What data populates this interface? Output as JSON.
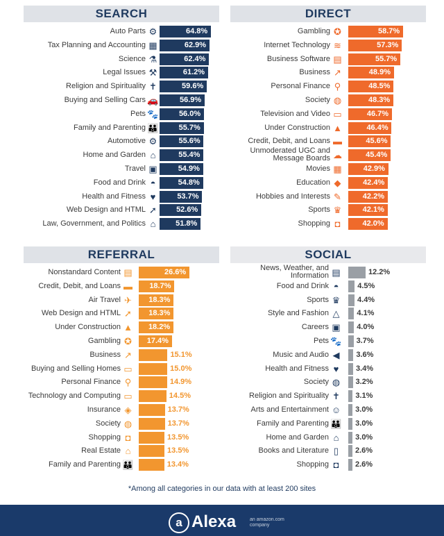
{
  "colors": {
    "search": "#1f3a5f",
    "direct": "#ef6a2b",
    "referral": "#f2962f",
    "social": "#9a9fa5",
    "title_text": "#1f3a5f",
    "label_text": "#3a3a3a",
    "footer": "#1a3a6a"
  },
  "chart_data": [
    {
      "type": "bar",
      "title": "SEARCH",
      "orientation": "horizontal",
      "max": 64.8,
      "categories": [
        "Auto Parts",
        "Tax Planning and Accounting",
        "Science",
        "Legal Issues",
        "Religion and Spirituality",
        "Buying and Selling Cars",
        "Pets",
        "Family and Parenting",
        "Automotive",
        "Home and Garden",
        "Travel",
        "Food and Drink",
        "Health and Fitness",
        "Web Design and HTML",
        "Law, Government, and Politics"
      ],
      "values": [
        64.8,
        62.9,
        62.4,
        61.2,
        59.6,
        56.9,
        56.0,
        55.7,
        55.6,
        55.4,
        54.9,
        54.8,
        53.7,
        52.6,
        51.8
      ],
      "value_labels": [
        "64.8%",
        "62.9%",
        "62.4%",
        "61.2%",
        "59.6%",
        "56.9%",
        "56.0%",
        "55.7%",
        "55.6%",
        "55.4%",
        "54.9%",
        "54.8%",
        "53.7%",
        "52.6%",
        "51.8%"
      ],
      "icons": [
        "car-parts-icon",
        "calculator-icon",
        "science-flask-icon",
        "gavel-icon",
        "religion-icon",
        "car-icon",
        "pets-icon",
        "family-icon",
        "gear-icon",
        "house-icon",
        "luggage-icon",
        "food-cloche-icon",
        "heart-pulse-icon",
        "cursor-icon",
        "government-building-icon"
      ]
    },
    {
      "type": "bar",
      "title": "DIRECT",
      "orientation": "horizontal",
      "max": 58.7,
      "categories": [
        "Gambling",
        "Internet Technology",
        "Business Software",
        "Business",
        "Personal Finance",
        "Society",
        "Television and Video",
        "Under Construction",
        "Credit, Debit, and Loans",
        "Unmoderated UGC and Message Boards",
        "Movies",
        "Education",
        "Hobbies and Interests",
        "Sports",
        "Shopping"
      ],
      "values": [
        58.7,
        57.3,
        55.7,
        48.9,
        48.5,
        48.3,
        46.7,
        46.4,
        45.6,
        45.4,
        42.9,
        42.4,
        42.2,
        42.1,
        42.0
      ],
      "value_labels": [
        "58.7%",
        "57.3%",
        "55.7%",
        "48.9%",
        "48.5%",
        "48.3%",
        "46.7%",
        "46.4%",
        "45.6%",
        "45.4%",
        "42.9%",
        "42.4%",
        "42.2%",
        "42.1%",
        "42.0%"
      ],
      "icons": [
        "poker-chip-icon",
        "wifi-icon",
        "software-icon",
        "chart-up-icon",
        "money-search-icon",
        "globe-icon",
        "tv-icon",
        "traffic-cone-icon",
        "credit-card-icon",
        "chat-bubble-icon",
        "clapperboard-icon",
        "graduation-cap-icon",
        "palette-icon",
        "trophy-icon",
        "shopping-bag-icon"
      ]
    },
    {
      "type": "bar",
      "title": "REFERRAL",
      "orientation": "horizontal",
      "max": 26.6,
      "categories": [
        "Nonstandard Content",
        "Credit, Debit, and Loans",
        "Air Travel",
        "Web Design and HTML",
        "Under Construction",
        "Gambling",
        "Business",
        "Buying and Selling Homes",
        "Personal Finance",
        "Technology and Computing",
        "Insurance",
        "Society",
        "Shopping",
        "Real Estate",
        "Family and Parenting"
      ],
      "values": [
        26.6,
        18.7,
        18.3,
        18.3,
        18.2,
        17.4,
        15.1,
        15.0,
        14.9,
        14.5,
        13.7,
        13.7,
        13.5,
        13.5,
        13.4
      ],
      "value_labels": [
        "26.6%",
        "18.7%",
        "18.3%",
        "18.3%",
        "18.2%",
        "17.4%",
        "15.1%",
        "15.0%",
        "14.9%",
        "14.5%",
        "13.7%",
        "13.7%",
        "13.5%",
        "13.5%",
        "13.4%"
      ],
      "icons": [
        "content-icon",
        "credit-card-icon",
        "airplane-icon",
        "cursor-icon",
        "traffic-cone-icon",
        "poker-chip-icon",
        "chart-up-icon",
        "sold-sign-icon",
        "money-search-icon",
        "computer-icon",
        "shield-icon",
        "globe-icon",
        "shopping-bag-icon",
        "real-estate-icon",
        "family-icon"
      ]
    },
    {
      "type": "bar",
      "title": "SOCIAL",
      "orientation": "horizontal",
      "max": 12.2,
      "categories": [
        "News, Weather, and Information",
        "Food and Drink",
        "Sports",
        "Style and Fashion",
        "Careers",
        "Pets",
        "Music and Audio",
        "Health and Fitness",
        "Society",
        "Religion and Spirituality",
        "Arts and Entertainment",
        "Family and Parenting",
        "Home and Garden",
        "Books and Literature",
        "Shopping"
      ],
      "values": [
        12.2,
        4.5,
        4.4,
        4.1,
        4.0,
        3.7,
        3.6,
        3.4,
        3.2,
        3.1,
        3.0,
        3.0,
        3.0,
        2.6,
        2.6
      ],
      "value_labels": [
        "12.2%",
        "4.5%",
        "4.4%",
        "4.1%",
        "4.0%",
        "3.7%",
        "3.6%",
        "3.4%",
        "3.2%",
        "3.1%",
        "3.0%",
        "3.0%",
        "3.0%",
        "2.6%",
        "2.6%"
      ],
      "icons": [
        "newspaper-icon",
        "food-cloche-icon",
        "trophy-icon",
        "hanger-icon",
        "briefcase-icon",
        "pets-icon",
        "speaker-icon",
        "heart-pulse-icon",
        "globe-icon",
        "religion-icon",
        "theater-masks-icon",
        "family-icon",
        "house-icon",
        "book-icon",
        "shopping-bag-icon"
      ]
    }
  ],
  "footnote": "*Among all categories in our data with at least 200 sites",
  "footer": {
    "logo_mark": "a",
    "logo_text": "Alexa",
    "tagline_line1": "an amazon.com",
    "tagline_line2": "company"
  }
}
